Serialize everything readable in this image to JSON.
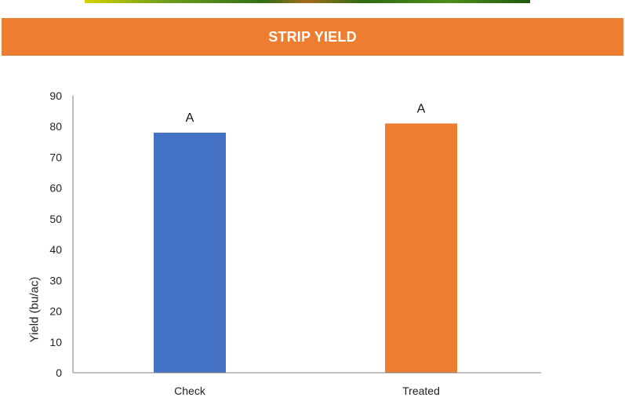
{
  "header": {
    "title": "STRIP YIELD"
  },
  "colors": {
    "header_bg": "#ed7d31",
    "check_bar": "#4472c4",
    "treated_bar": "#ed7d31",
    "axis": "#7f7f7f"
  },
  "chart_data": {
    "type": "bar",
    "categories": [
      "Check",
      "Treated"
    ],
    "values": [
      78,
      81
    ],
    "data_labels": [
      "A",
      "A"
    ],
    "ylabel": "Yield (bu/ac)",
    "xlabel": "",
    "ylim": [
      0,
      90
    ],
    "yticks": [
      0,
      10,
      20,
      30,
      40,
      50,
      60,
      70,
      80,
      90
    ],
    "grid": false,
    "legend": "none",
    "bar_colors": [
      "#4472c4",
      "#ed7d31"
    ]
  }
}
